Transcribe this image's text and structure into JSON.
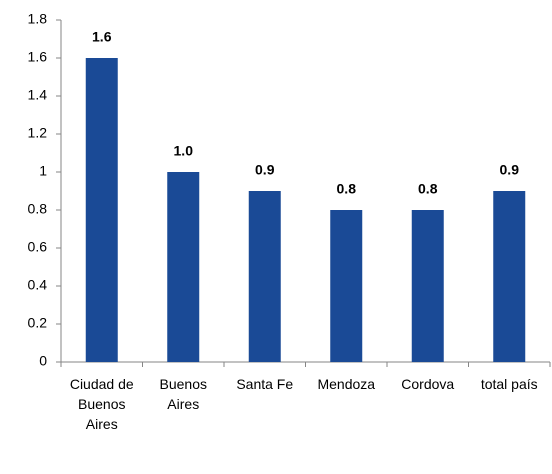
{
  "chart_data": {
    "type": "bar",
    "categories": [
      "Ciudad de Buenos Aires",
      "Buenos Aires",
      "Santa Fe",
      "Mendoza",
      "Cordova",
      "total país"
    ],
    "values": [
      1.6,
      1.0,
      0.9,
      0.8,
      0.8,
      0.9
    ],
    "value_labels": [
      "1.6",
      "1.0",
      "0.9",
      "0.8",
      "0.8",
      "0.9"
    ],
    "color": "#1a4a96",
    "ylim": [
      0,
      1.8
    ],
    "yticks": [
      0,
      0.2,
      0.4,
      0.6,
      0.8,
      1,
      1.2,
      1.4,
      1.6,
      1.8
    ],
    "grid": false
  }
}
